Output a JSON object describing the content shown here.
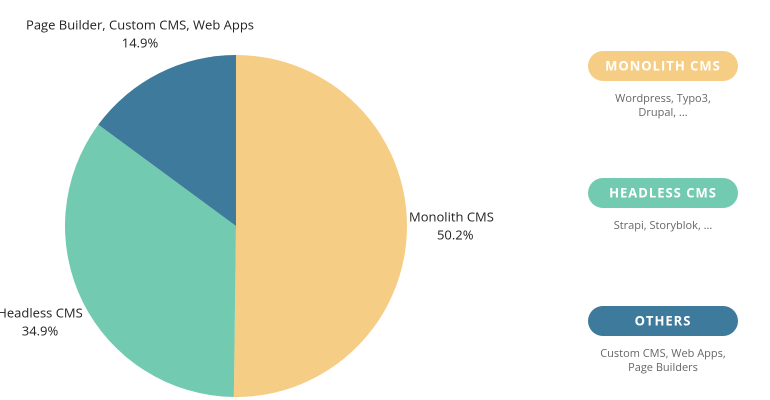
{
  "chart_data": {
    "type": "pie",
    "categories": [
      "Monolith CMS",
      "Headless CMS",
      "Page Builder, Custom CMS, Web Apps"
    ],
    "values": [
      50.2,
      34.9,
      14.9
    ],
    "value_labels": [
      "50.2%",
      "34.9%",
      "14.9%"
    ],
    "colors": [
      "#f6cd85",
      "#72cbb0",
      "#3e7a9b"
    ],
    "legend": [
      {
        "label": "MONOLITH CMS",
        "color": "#f6cd85",
        "description": [
          "Wordpress, Typo3,",
          "Drupal, ..."
        ]
      },
      {
        "label": "HEADLESS CMS",
        "color": "#72cbb0",
        "description": [
          "Strapi, Storyblok, ..."
        ]
      },
      {
        "label": "OTHERS",
        "color": "#3e7a9b",
        "description": [
          "Custom CMS, Web Apps,",
          "Page Builders"
        ]
      }
    ]
  }
}
